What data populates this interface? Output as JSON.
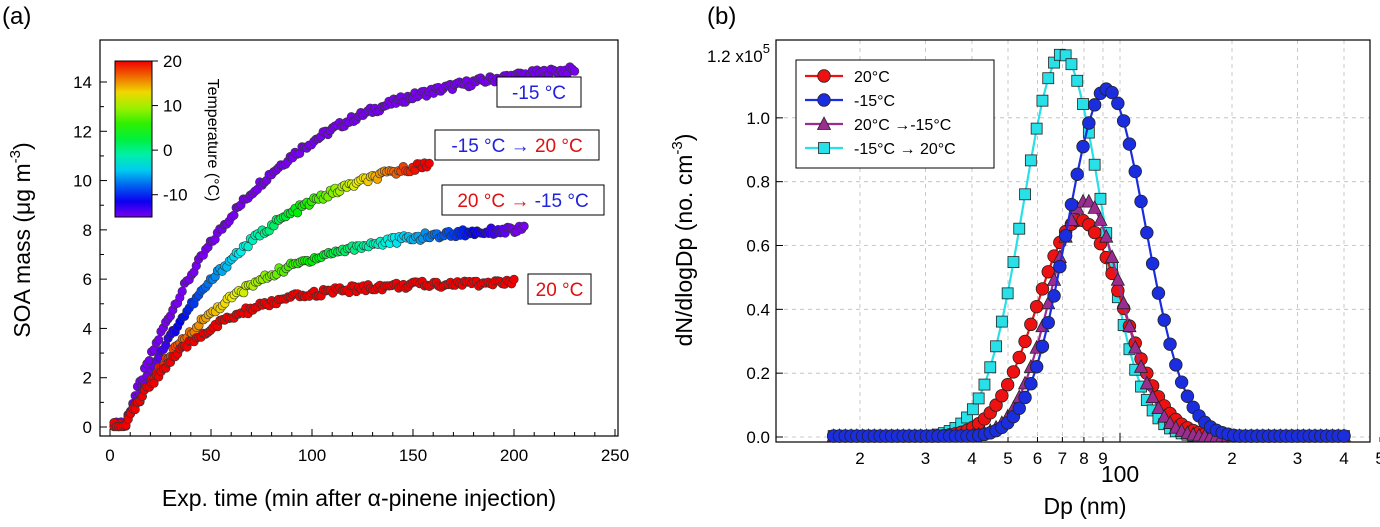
{
  "panel_a": {
    "label": "(a)",
    "colorbar": {
      "title": "Temperature (°C)",
      "ticks": [
        "20",
        "10",
        "0",
        "-10"
      ]
    },
    "annotations": [
      {
        "parts": [
          {
            "text": "-15 °C",
            "color": "#2020e0"
          }
        ]
      },
      {
        "parts": [
          {
            "text": "-15 °C → ",
            "color": "#2020e0"
          },
          {
            "text": "20 °C",
            "color": "#e01010"
          }
        ]
      },
      {
        "parts": [
          {
            "text": "20 °C → ",
            "color": "#e01010"
          },
          {
            "text": "-15 °C",
            "color": "#2020e0"
          }
        ]
      },
      {
        "parts": [
          {
            "text": "20 °C",
            "color": "#e01010"
          }
        ]
      }
    ]
  },
  "panel_b": {
    "label": "(b)",
    "ytop_label": "1.2 x10",
    "ytop_exp": "5"
  },
  "chart_data": [
    {
      "type": "scatter",
      "panel": "a",
      "xlabel": "Exp.  time (min after α-pinene injection)",
      "ylabel": "SOA mass (μg m",
      "ylabel_sup": "-3",
      "ylabel_end": ")",
      "xlim": [
        0,
        250
      ],
      "ylim": [
        0,
        15
      ],
      "xticks": [
        0,
        50,
        100,
        150,
        200,
        250
      ],
      "yticks": [
        0,
        2,
        4,
        6,
        8,
        10,
        12,
        14
      ],
      "color_scale": {
        "label": "Temperature (°C)",
        "min": -15,
        "max": 20
      },
      "series": [
        {
          "temp": "-15",
          "temp_end": "-15",
          "x_end": 230,
          "plateau": 14.9,
          "tau": 62
        },
        {
          "temp": "-15",
          "temp_end": "20",
          "x_end": 158,
          "plateau": 11.6,
          "tau": 60
        },
        {
          "temp": "20",
          "temp_end": "-15",
          "x_end": 205,
          "plateau": 8.2,
          "tau": 52
        },
        {
          "temp": "20",
          "temp_end": "20",
          "x_end": 200,
          "plateau": 5.9,
          "tau": 38
        }
      ]
    },
    {
      "type": "line",
      "panel": "b",
      "xlabel": "Dp (nm)",
      "ylabel": "dN/dlogDp (no. cm",
      "ylabel_sup": "-3",
      "ylabel_end": ")",
      "x_scale": "log",
      "xlim": [
        10,
        500
      ],
      "ylim": [
        0,
        1.2
      ],
      "y_multiplier": "x10^5",
      "xtick_major": [
        "100"
      ],
      "xtick_minor": [
        "2",
        "3",
        "4",
        "5",
        "6",
        "7",
        "8",
        "9",
        "2",
        "3",
        "4",
        "5"
      ],
      "yticks": [
        "0.0",
        "0.2",
        "0.4",
        "0.6",
        "0.8",
        "1.0"
      ],
      "grid": true,
      "legend_position": "top-left",
      "series": [
        {
          "name": "20°C",
          "marker": "circle",
          "color": "#ee1111",
          "mode_nm": 78,
          "peak": 0.68,
          "sigma": 0.115
        },
        {
          "name": "-15°C",
          "marker": "circle",
          "color": "#1a2ee0",
          "mode_nm": 92,
          "peak": 1.09,
          "sigma": 0.105
        },
        {
          "name": "20°C →-15°C",
          "marker": "triangle",
          "color": "#9b2c90",
          "mode_nm": 81,
          "peak": 0.74,
          "sigma": 0.095
        },
        {
          "name": "-15°C → 20°C",
          "marker": "square",
          "color": "#28e0e8",
          "mode_nm": 70,
          "peak": 1.2,
          "sigma": 0.105
        }
      ]
    }
  ]
}
